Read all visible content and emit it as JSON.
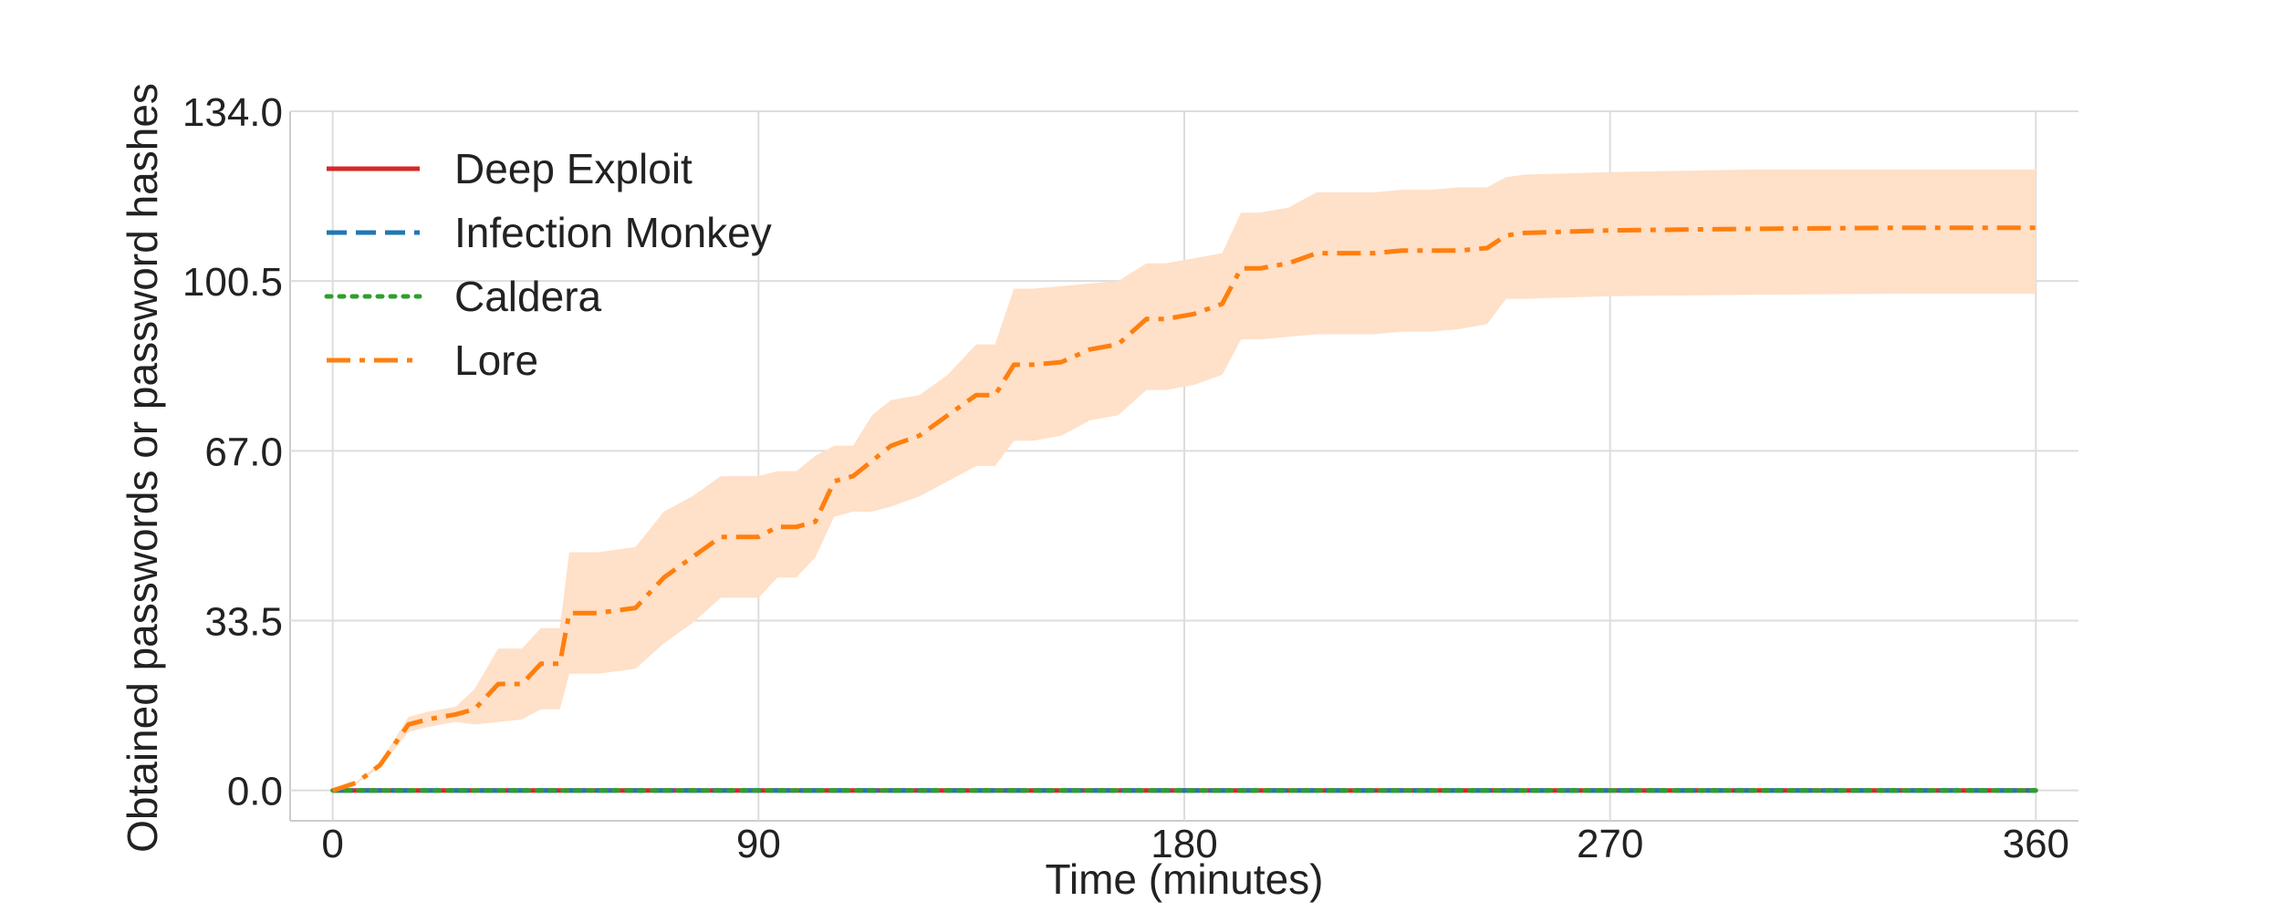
{
  "chart_data": {
    "type": "line",
    "xlabel": "Time (minutes)",
    "ylabel": "Obtained passwords or password hashes",
    "xlim": [
      -9,
      369
    ],
    "ylim": [
      -6,
      134
    ],
    "xticks": [
      0,
      90,
      180,
      270,
      360
    ],
    "xtick_labels": [
      "0",
      "90",
      "180",
      "270",
      "360"
    ],
    "yticks": [
      0,
      33.5,
      67,
      100.5,
      134
    ],
    "ytick_labels": [
      "0.0",
      "33.5",
      "67.0",
      "100.5",
      "134.0"
    ],
    "grid": true,
    "legend_position": "top-left",
    "series": [
      {
        "name": "Deep Exploit",
        "color": "#d62728",
        "dash": "solid",
        "x": [
          0,
          360
        ],
        "y": [
          0,
          0
        ]
      },
      {
        "name": "Infection Monkey",
        "color": "#1f77b4",
        "dash": "dashed",
        "x": [
          0,
          360
        ],
        "y": [
          0,
          0
        ]
      },
      {
        "name": "Caldera",
        "color": "#2ca02c",
        "dash": "dotted",
        "x": [
          0,
          360
        ],
        "y": [
          0,
          0
        ]
      },
      {
        "name": "Lore",
        "color": "#ff7f0e",
        "dash": "dashdot",
        "band_color": "#ffe0c8",
        "x": [
          0,
          5,
          10,
          16,
          20,
          26,
          30,
          35,
          40,
          44,
          48,
          50,
          56,
          60,
          64,
          70,
          76,
          82,
          86,
          90,
          94,
          98,
          102,
          106,
          110,
          114,
          118,
          124,
          130,
          136,
          140,
          144,
          148,
          154,
          160,
          166,
          172,
          176,
          182,
          188,
          192,
          196,
          202,
          208,
          214,
          220,
          226,
          232,
          238,
          244,
          248,
          252,
          270,
          300,
          330,
          360
        ],
        "y": [
          0,
          1.5,
          5,
          13,
          14,
          15,
          16,
          21,
          21,
          25,
          25,
          35,
          35,
          35.5,
          36,
          42,
          46,
          50,
          50,
          50,
          52,
          52,
          53,
          61,
          62,
          65,
          68,
          70,
          74,
          78,
          78,
          84,
          84,
          84.5,
          87,
          88,
          93,
          93,
          94,
          96,
          103,
          103,
          104,
          106,
          106,
          106,
          106.5,
          106.5,
          106.5,
          107,
          109.5,
          110,
          110.5,
          110.8,
          111,
          111
        ],
        "lower": [
          0,
          1.3,
          4.5,
          11.5,
          12.5,
          13.5,
          13,
          13.5,
          14,
          16,
          16,
          23,
          23,
          23.5,
          24,
          29,
          33,
          38,
          38,
          38,
          42,
          42,
          46,
          54,
          55,
          55,
          56,
          58,
          61,
          64,
          64,
          69,
          69,
          70,
          73,
          74,
          79,
          79,
          80,
          82,
          89,
          89,
          89.5,
          90,
          90,
          90,
          90.5,
          90.5,
          91,
          92,
          97,
          97,
          97.5,
          97.8,
          98,
          98
        ],
        "upper": [
          0,
          1.7,
          5.5,
          14.5,
          15.5,
          16.5,
          20,
          28,
          28,
          32,
          32,
          47,
          47,
          47.5,
          48,
          55,
          58,
          62,
          62,
          62,
          63,
          63,
          66,
          68,
          68,
          74,
          77,
          78,
          82,
          88,
          88,
          99,
          99,
          99.5,
          100,
          100.5,
          104,
          104,
          105,
          106,
          114,
          114,
          115,
          118,
          118,
          118,
          118.5,
          118.5,
          119,
          119,
          121,
          121.5,
          122,
          122.5,
          122.5,
          122.5
        ]
      }
    ]
  }
}
